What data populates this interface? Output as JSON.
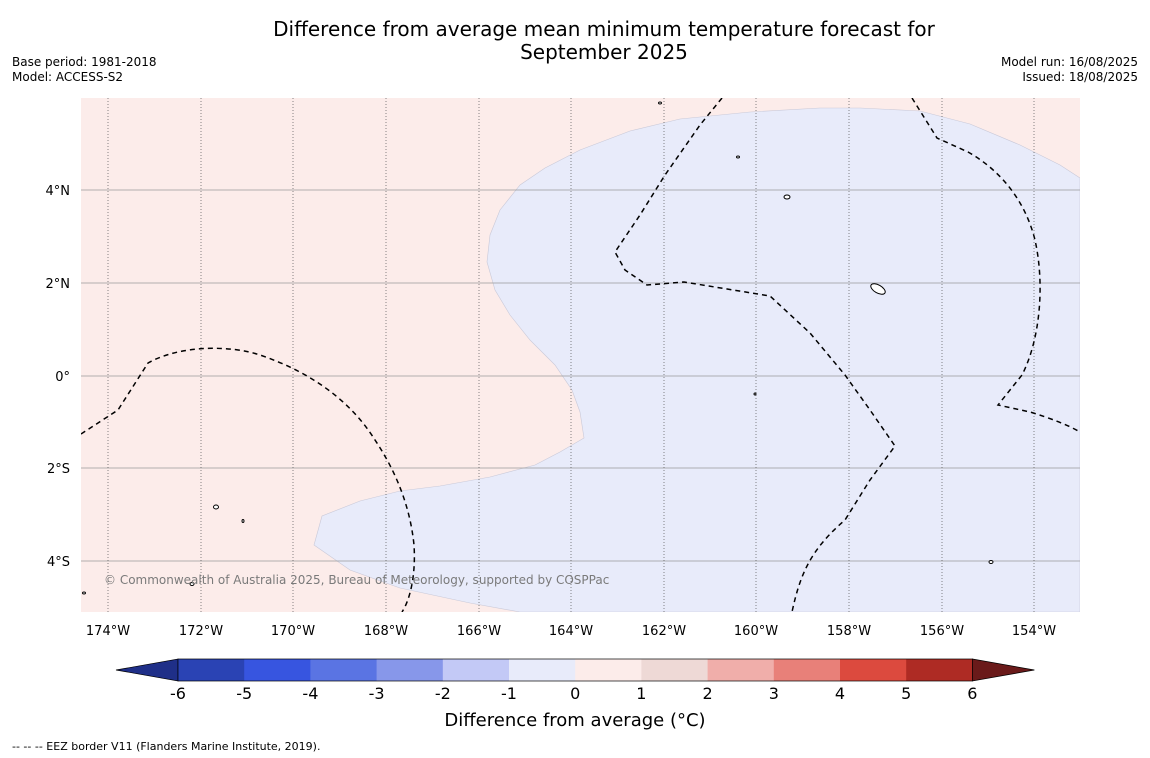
{
  "title": "Difference from average mean minimum temperature forecast for September 2025",
  "title_lines": [
    "Difference from average mean minimum temperature forecast for",
    "September 2025"
  ],
  "base_period": "Base period: 1981-2018",
  "model": "Model: ACCESS-S2",
  "model_run": "Model run: 16/08/2025",
  "issued": "Issued: 18/08/2025",
  "map": {
    "lat_labels": [
      "4°N",
      "2°N",
      "0°",
      "2°S",
      "4°S"
    ],
    "lon_labels": [
      "174°W",
      "172°W",
      "170°W",
      "168°W",
      "166°W",
      "164°W",
      "162°W",
      "160°W",
      "158°W",
      "156°W",
      "154°W"
    ],
    "copyright": "© Commonwealth of Australia 2025, Bureau of Meteorology, supported by COSPPac",
    "colors": {
      "band_0_1": "#fcecea",
      "band_-1_0": "#e8ebfa"
    }
  },
  "colorbar": {
    "title": "Difference from average (°C)",
    "ticks": [
      "-6",
      "-5",
      "-4",
      "-3",
      "-2",
      "-1",
      "0",
      "1",
      "2",
      "3",
      "4",
      "5",
      "6"
    ],
    "colors": [
      "#1f2f88",
      "#2a43b4",
      "#3755e0",
      "#5a74e3",
      "#8797ea",
      "#c3c9f6",
      "#e8ebfa",
      "#fcecea",
      "#eed9d6",
      "#f0aeaa",
      "#e88079",
      "#dc4a3e",
      "#ae2b24",
      "#6a1a1a"
    ]
  },
  "footnote": "-- -- -- EEZ border V11 (Flanders Marine Institute, 2019)."
}
